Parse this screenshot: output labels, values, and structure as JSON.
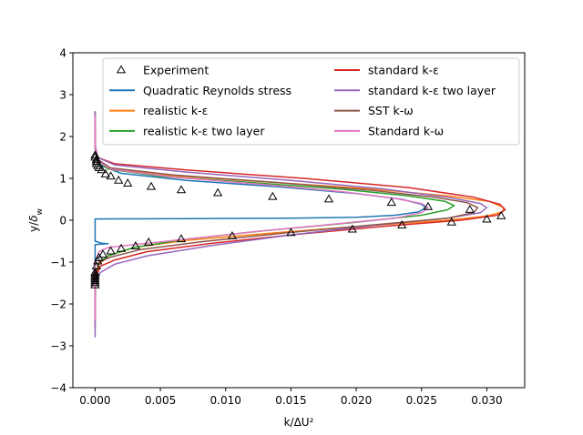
{
  "chart_data": {
    "type": "line",
    "title": "",
    "xlabel": "k/ΔU²",
    "ylabel": "y/δ_w",
    "xlim": [
      -0.0017,
      0.0329
    ],
    "ylim": [
      -4,
      4
    ],
    "xticks": [
      "0.000",
      "0.005",
      "0.010",
      "0.015",
      "0.020",
      "0.025",
      "0.030"
    ],
    "xtick_values": [
      0,
      0.005,
      0.01,
      0.015,
      0.02,
      0.025,
      0.03
    ],
    "yticks": [
      "4",
      "3",
      "2",
      "1",
      "0",
      "−1",
      "−2",
      "−3",
      "−4"
    ],
    "ytick_values": [
      4,
      3,
      2,
      1,
      0,
      -1,
      -2,
      -3,
      -4
    ],
    "grid": false,
    "legend_position": "top",
    "legend_columns": 2,
    "experiment": {
      "name": "Experiment",
      "color": "#000000",
      "marker": "triangle-open",
      "points": [
        [
          0.0,
          1.55
        ],
        [
          0.0,
          1.5
        ],
        [
          0.0001,
          1.45
        ],
        [
          0.0001,
          1.4
        ],
        [
          0.0001,
          1.35
        ],
        [
          0.0002,
          1.3
        ],
        [
          0.0003,
          1.25
        ],
        [
          0.0005,
          1.2
        ],
        [
          0.0008,
          1.1
        ],
        [
          0.0012,
          1.05
        ],
        [
          0.0018,
          0.95
        ],
        [
          0.0025,
          0.88
        ],
        [
          0.0043,
          0.8
        ],
        [
          0.0066,
          0.72
        ],
        [
          0.0094,
          0.65
        ],
        [
          0.0136,
          0.56
        ],
        [
          0.0179,
          0.5
        ],
        [
          0.0227,
          0.42
        ],
        [
          0.0255,
          0.32
        ],
        [
          0.0287,
          0.25
        ],
        [
          0.0311,
          0.1
        ],
        [
          0.03,
          0.02
        ],
        [
          0.0273,
          -0.05
        ],
        [
          0.0235,
          -0.12
        ],
        [
          0.0197,
          -0.22
        ],
        [
          0.015,
          -0.3
        ],
        [
          0.0105,
          -0.38
        ],
        [
          0.0066,
          -0.45
        ],
        [
          0.0041,
          -0.53
        ],
        [
          0.0031,
          -0.62
        ],
        [
          0.002,
          -0.68
        ],
        [
          0.0012,
          -0.74
        ],
        [
          0.0006,
          -0.82
        ],
        [
          0.0003,
          -0.9
        ],
        [
          0.0002,
          -0.98
        ],
        [
          0.0001,
          -1.1
        ],
        [
          0.0,
          -1.25
        ],
        [
          0.0,
          -1.3
        ],
        [
          0.0,
          -1.35
        ],
        [
          0.0,
          -1.4
        ],
        [
          0.0,
          -1.45
        ],
        [
          0.0,
          -1.5
        ],
        [
          0.0,
          -1.55
        ]
      ]
    },
    "series": [
      {
        "name": "Quadratic Reynolds stress",
        "color": "#1f77b4",
        "points": [
          [
            0.0,
            2.6
          ],
          [
            0.0,
            1.8
          ],
          [
            0.0001,
            1.5
          ],
          [
            0.0005,
            1.3
          ],
          [
            0.002,
            1.12
          ],
          [
            0.007,
            0.95
          ],
          [
            0.014,
            0.8
          ],
          [
            0.02,
            0.64
          ],
          [
            0.0235,
            0.5
          ],
          [
            0.025,
            0.38
          ],
          [
            0.0253,
            0.3
          ],
          [
            0.0248,
            0.2
          ],
          [
            0.023,
            0.12
          ],
          [
            0.02,
            0.07
          ],
          [
            0.015,
            0.05
          ],
          [
            0.008,
            0.04
          ],
          [
            0.0,
            0.03
          ],
          [
            0.0,
            -0.5
          ],
          [
            0.0005,
            -0.55
          ],
          [
            0.001,
            -0.56
          ],
          [
            0.0,
            -0.58
          ],
          [
            0.0,
            -2.4
          ]
        ]
      },
      {
        "name": "realistic k-ε",
        "color": "#ff7f0e",
        "points": [
          [
            0.0,
            2.2
          ],
          [
            0.0,
            1.7
          ],
          [
            0.0002,
            1.45
          ],
          [
            0.001,
            1.25
          ],
          [
            0.005,
            1.08
          ],
          [
            0.013,
            0.92
          ],
          [
            0.021,
            0.75
          ],
          [
            0.027,
            0.58
          ],
          [
            0.0302,
            0.45
          ],
          [
            0.0313,
            0.3
          ],
          [
            0.0312,
            0.2
          ],
          [
            0.03,
            0.1
          ],
          [
            0.027,
            0.0
          ],
          [
            0.02,
            -0.15
          ],
          [
            0.013,
            -0.32
          ],
          [
            0.007,
            -0.48
          ],
          [
            0.003,
            -0.65
          ],
          [
            0.001,
            -0.85
          ],
          [
            0.0003,
            -1.05
          ],
          [
            0.0,
            -1.4
          ],
          [
            0.0,
            -2.4
          ]
        ]
      },
      {
        "name": "realistic k-ε two layer",
        "color": "#2ca02c",
        "points": [
          [
            0.0,
            2.2
          ],
          [
            0.0,
            1.7
          ],
          [
            0.0002,
            1.42
          ],
          [
            0.001,
            1.22
          ],
          [
            0.005,
            1.05
          ],
          [
            0.012,
            0.9
          ],
          [
            0.019,
            0.74
          ],
          [
            0.024,
            0.58
          ],
          [
            0.0268,
            0.45
          ],
          [
            0.0275,
            0.35
          ],
          [
            0.027,
            0.25
          ],
          [
            0.025,
            0.12
          ],
          [
            0.02,
            -0.05
          ],
          [
            0.013,
            -0.25
          ],
          [
            0.007,
            -0.45
          ],
          [
            0.003,
            -0.65
          ],
          [
            0.001,
            -0.85
          ],
          [
            0.0003,
            -1.0
          ],
          [
            0.0,
            -1.3
          ],
          [
            0.0,
            -2.4
          ]
        ]
      },
      {
        "name": "standard k-ε",
        "color": "#d62728",
        "points": [
          [
            0.0,
            2.6
          ],
          [
            0.0,
            1.8
          ],
          [
            0.0002,
            1.5
          ],
          [
            0.0015,
            1.35
          ],
          [
            0.007,
            1.2
          ],
          [
            0.016,
            1.0
          ],
          [
            0.024,
            0.78
          ],
          [
            0.029,
            0.55
          ],
          [
            0.031,
            0.38
          ],
          [
            0.0314,
            0.25
          ],
          [
            0.0308,
            0.12
          ],
          [
            0.028,
            0.0
          ],
          [
            0.022,
            -0.15
          ],
          [
            0.015,
            -0.35
          ],
          [
            0.009,
            -0.55
          ],
          [
            0.004,
            -0.75
          ],
          [
            0.0015,
            -0.95
          ],
          [
            0.0004,
            -1.1
          ],
          [
            0.0,
            -1.4
          ],
          [
            0.0,
            -2.6
          ]
        ]
      },
      {
        "name": "standard k-ε two layer",
        "color": "#9467bd",
        "points": [
          [
            0.0,
            2.6
          ],
          [
            0.0,
            1.8
          ],
          [
            0.0002,
            1.5
          ],
          [
            0.0015,
            1.32
          ],
          [
            0.007,
            1.15
          ],
          [
            0.015,
            0.95
          ],
          [
            0.022,
            0.75
          ],
          [
            0.027,
            0.55
          ],
          [
            0.0295,
            0.4
          ],
          [
            0.03,
            0.3
          ],
          [
            0.0295,
            0.18
          ],
          [
            0.027,
            0.05
          ],
          [
            0.022,
            -0.1
          ],
          [
            0.015,
            -0.35
          ],
          [
            0.009,
            -0.6
          ],
          [
            0.004,
            -0.85
          ],
          [
            0.0015,
            -1.05
          ],
          [
            0.0004,
            -1.25
          ],
          [
            0.0,
            -1.5
          ],
          [
            0.0,
            -2.8
          ]
        ]
      },
      {
        "name": "SST k-ω",
        "color": "#8c564b",
        "points": [
          [
            0.0,
            2.4
          ],
          [
            0.0,
            1.75
          ],
          [
            0.0002,
            1.45
          ],
          [
            0.0012,
            1.25
          ],
          [
            0.006,
            1.08
          ],
          [
            0.014,
            0.9
          ],
          [
            0.021,
            0.72
          ],
          [
            0.026,
            0.55
          ],
          [
            0.0285,
            0.42
          ],
          [
            0.0293,
            0.3
          ],
          [
            0.029,
            0.18
          ],
          [
            0.027,
            0.05
          ],
          [
            0.021,
            -0.12
          ],
          [
            0.014,
            -0.32
          ],
          [
            0.008,
            -0.52
          ],
          [
            0.0035,
            -0.7
          ],
          [
            0.0012,
            -0.88
          ],
          [
            0.0003,
            -1.0
          ],
          [
            0.0,
            -1.3
          ],
          [
            0.0,
            -2.4
          ]
        ]
      },
      {
        "name": "Standard k-ω",
        "color": "#e377c2",
        "points": [
          [
            0.0,
            2.5
          ],
          [
            0.0,
            1.75
          ],
          [
            0.0002,
            1.42
          ],
          [
            0.0012,
            1.22
          ],
          [
            0.006,
            1.03
          ],
          [
            0.013,
            0.85
          ],
          [
            0.019,
            0.68
          ],
          [
            0.023,
            0.52
          ],
          [
            0.025,
            0.4
          ],
          [
            0.0255,
            0.3
          ],
          [
            0.025,
            0.18
          ],
          [
            0.023,
            0.05
          ],
          [
            0.018,
            -0.1
          ],
          [
            0.012,
            -0.28
          ],
          [
            0.007,
            -0.45
          ],
          [
            0.003,
            -0.58
          ],
          [
            0.001,
            -0.65
          ],
          [
            0.0003,
            -0.75
          ],
          [
            0.0,
            -1.0
          ],
          [
            0.0,
            -2.4
          ]
        ]
      }
    ]
  }
}
